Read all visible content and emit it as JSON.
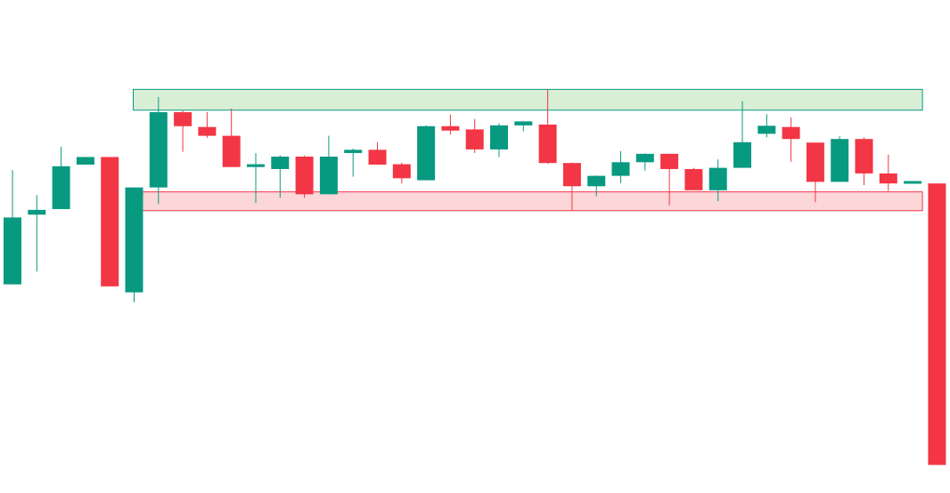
{
  "chart_data": {
    "type": "candlestick",
    "title": "",
    "xlabel": "",
    "ylabel": "",
    "ylim": [
      -60,
      60
    ],
    "grid": false,
    "legend": "none",
    "colors": {
      "up": "#089981",
      "down": "#f23645",
      "resistance_fill": "#d8efd6",
      "resistance_stroke": "#089981",
      "support_fill": "#fcd6d9",
      "support_stroke": "#f23645"
    },
    "zones": [
      {
        "name": "resistance",
        "from_index": 5,
        "to_index": 37,
        "low": 33.6,
        "high": 38.8
      },
      {
        "name": "support",
        "from_index": 5,
        "to_index": 37,
        "low": 8.5,
        "high": 13.2
      }
    ],
    "candles": [
      {
        "o": -9.9,
        "h": 18.6,
        "l": -9.9,
        "c": 6.8
      },
      {
        "o": 7.5,
        "h": 12.4,
        "l": -6.7,
        "c": 8.7
      },
      {
        "o": 8.9,
        "h": 24.5,
        "l": 8.9,
        "c": 19.6
      },
      {
        "o": 20.0,
        "h": 21.9,
        "l": 20.0,
        "c": 21.9
      },
      {
        "o": 21.9,
        "h": 21.9,
        "l": -10.4,
        "c": -10.4
      },
      {
        "o": -11.9,
        "h": 14.3,
        "l": -14.4,
        "c": 14.3
      },
      {
        "o": 14.3,
        "h": 36.9,
        "l": 10.2,
        "c": 33.1
      },
      {
        "o": 33.1,
        "h": 33.6,
        "l": 23.2,
        "c": 29.6
      },
      {
        "o": 29.4,
        "h": 33.1,
        "l": 26.7,
        "c": 27.2
      },
      {
        "o": 27.2,
        "h": 34.0,
        "l": 19.4,
        "c": 19.4
      },
      {
        "o": 19.4,
        "h": 22.9,
        "l": 10.4,
        "c": 20.1
      },
      {
        "o": 18.9,
        "h": 22.3,
        "l": 11.7,
        "c": 22.0
      },
      {
        "o": 22.0,
        "h": 22.3,
        "l": 11.7,
        "c": 12.6
      },
      {
        "o": 12.6,
        "h": 27.2,
        "l": 12.6,
        "c": 22.0
      },
      {
        "o": 22.9,
        "h": 24.0,
        "l": 17.0,
        "c": 23.7
      },
      {
        "o": 23.7,
        "h": 25.6,
        "l": 20.0,
        "c": 20.0
      },
      {
        "o": 20.1,
        "h": 20.5,
        "l": 15.3,
        "c": 16.6
      },
      {
        "o": 16.1,
        "h": 29.8,
        "l": 16.1,
        "c": 29.6
      },
      {
        "o": 29.6,
        "h": 32.5,
        "l": 27.5,
        "c": 28.5
      },
      {
        "o": 28.8,
        "h": 31.4,
        "l": 22.9,
        "c": 23.8
      },
      {
        "o": 23.8,
        "h": 30.3,
        "l": 21.9,
        "c": 29.8
      },
      {
        "o": 29.8,
        "h": 30.8,
        "l": 28.3,
        "c": 30.8
      },
      {
        "o": 30.0,
        "h": 38.8,
        "l": 20.2,
        "c": 20.4
      },
      {
        "o": 20.4,
        "h": 20.5,
        "l": 8.5,
        "c": 14.6
      },
      {
        "o": 14.6,
        "h": 17.3,
        "l": 12.1,
        "c": 17.2
      },
      {
        "o": 17.2,
        "h": 23.4,
        "l": 15.4,
        "c": 20.6
      },
      {
        "o": 20.6,
        "h": 22.8,
        "l": 18.5,
        "c": 22.7
      },
      {
        "o": 22.7,
        "h": 22.7,
        "l": 9.8,
        "c": 18.9
      },
      {
        "o": 18.9,
        "h": 19.2,
        "l": 13.6,
        "c": 13.6
      },
      {
        "o": 13.6,
        "h": 21.3,
        "l": 10.9,
        "c": 19.2
      },
      {
        "o": 19.2,
        "h": 35.8,
        "l": 19.2,
        "c": 25.6
      },
      {
        "o": 27.7,
        "h": 32.6,
        "l": 26.8,
        "c": 29.7
      },
      {
        "o": 29.4,
        "h": 31.8,
        "l": 20.7,
        "c": 26.4
      },
      {
        "o": 25.5,
        "h": 25.5,
        "l": 10.6,
        "c": 15.7
      },
      {
        "o": 15.7,
        "h": 27.1,
        "l": 15.7,
        "c": 26.4
      },
      {
        "o": 26.4,
        "h": 26.8,
        "l": 14.9,
        "c": 17.8
      },
      {
        "o": 17.8,
        "h": 22.5,
        "l": 13.4,
        "c": 15.3
      },
      {
        "o": 15.3,
        "h": 15.9,
        "l": 15.3,
        "c": 15.9
      },
      {
        "o": 15.3,
        "h": 15.3,
        "l": -55.0,
        "c": -55.0
      }
    ]
  }
}
